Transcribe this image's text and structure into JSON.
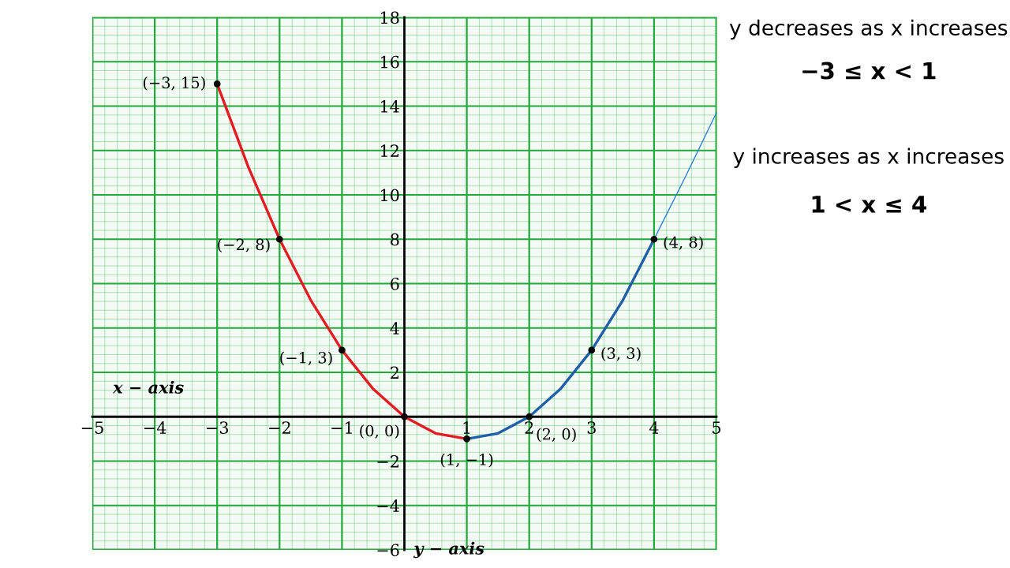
{
  "chart_data": {
    "type": "line",
    "xlabel": "x − axis",
    "ylabel": "y − axis",
    "xlim": [
      -5,
      5
    ],
    "ylim": [
      -6,
      18
    ],
    "xticks": [
      -5,
      {
        "value": -4.8,
        "label": null
      },
      {
        "value": -4.6,
        "label": null
      },
      {
        "value": -4.4,
        "label": null
      },
      {
        "value": -4.2,
        "label": null
      },
      -4,
      {
        "value": -3.8,
        "label": null
      },
      {
        "value": -3.6,
        "label": null
      },
      {
        "value": -3.4,
        "label": null
      },
      {
        "value": -3.2,
        "label": null
      },
      -3,
      {
        "value": -2.8,
        "label": null
      },
      {
        "value": -2.6,
        "label": null
      },
      {
        "value": -2.4,
        "label": null
      },
      {
        "value": -2.2,
        "label": null
      },
      -2,
      {
        "value": -1.8,
        "label": null
      },
      {
        "value": -1.6,
        "label": null
      },
      {
        "value": -1.4,
        "label": null
      },
      {
        "value": -1.2,
        "label": null
      },
      -1,
      {
        "value": -0.8,
        "label": null
      },
      {
        "value": -0.6,
        "label": null
      },
      {
        "value": -0.4,
        "label": null
      },
      {
        "value": -0.2,
        "label": null
      },
      {
        "value": 0,
        "label": null
      },
      {
        "value": 0.2,
        "label": null
      },
      {
        "value": 0.4,
        "label": null
      },
      {
        "value": 0.6,
        "label": null
      },
      {
        "value": 0.8,
        "label": null
      },
      1,
      {
        "value": 1.2,
        "label": null
      },
      {
        "value": 1.4,
        "label": null
      },
      {
        "value": 1.6,
        "label": null
      },
      {
        "value": 1.8,
        "label": null
      },
      2,
      {
        "value": 2.2,
        "label": null
      },
      {
        "value": 2.4,
        "label": null
      },
      {
        "value": 2.6,
        "label": null
      },
      {
        "value": 2.8,
        "label": null
      },
      3,
      {
        "value": 3.2,
        "label": null
      },
      {
        "value": 3.4,
        "label": null
      },
      {
        "value": 3.6,
        "label": null
      },
      {
        "value": 3.8,
        "label": null
      },
      4,
      {
        "value": 4.2,
        "label": null
      },
      {
        "value": 4.4,
        "label": null
      },
      {
        "value": 4.6,
        "label": null
      },
      {
        "value": 4.8,
        "label": null
      },
      5
    ],
    "yticks": [
      -6,
      {
        "value": -5.6,
        "label": null
      },
      {
        "value": -5.2,
        "label": null
      },
      {
        "value": -4.8,
        "label": null
      },
      {
        "value": -4.4,
        "label": null
      },
      -4,
      {
        "value": -3.6,
        "label": null
      },
      {
        "value": -3.2,
        "label": null
      },
      {
        "value": -2.8,
        "label": null
      },
      {
        "value": -2.4,
        "label": null
      },
      -2,
      {
        "value": -1.6,
        "label": null
      },
      {
        "value": -1.2,
        "label": null
      },
      {
        "value": -0.8,
        "label": null
      },
      {
        "value": -0.4,
        "label": null
      },
      {
        "value": 0,
        "label": null
      },
      {
        "value": 0.4,
        "label": null
      },
      {
        "value": 0.8,
        "label": null
      },
      {
        "value": 1.2,
        "label": null
      },
      {
        "value": 1.6,
        "label": null
      },
      2,
      {
        "value": 2.4,
        "label": null
      },
      {
        "value": 2.8,
        "label": null
      },
      {
        "value": 3.2,
        "label": null
      },
      {
        "value": 3.6,
        "label": null
      },
      4,
      {
        "value": 4.4,
        "label": null
      },
      {
        "value": 4.8,
        "label": null
      },
      {
        "value": 5.2,
        "label": null
      },
      {
        "value": 5.6,
        "label": null
      },
      6,
      {
        "value": 6.4,
        "label": null
      },
      {
        "value": 6.8,
        "label": null
      },
      {
        "value": 7.2,
        "label": null
      },
      {
        "value": 7.6,
        "label": null
      },
      8,
      {
        "value": 8.4,
        "label": null
      },
      {
        "value": 8.8,
        "label": null
      },
      {
        "value": 9.2,
        "label": null
      },
      {
        "value": 9.6,
        "label": null
      },
      10,
      {
        "value": 10.4,
        "label": null
      },
      {
        "value": 10.8,
        "label": null
      },
      {
        "value": 11.2,
        "label": null
      },
      {
        "value": 11.6,
        "label": null
      },
      12,
      {
        "value": 12.4,
        "label": null
      },
      {
        "value": 12.8,
        "label": null
      },
      {
        "value": 13.2,
        "label": null
      },
      {
        "value": 13.6,
        "label": null
      },
      14,
      {
        "value": 14.4,
        "label": null
      },
      {
        "value": 14.8,
        "label": null
      },
      {
        "value": 15.2,
        "label": null
      },
      {
        "value": 15.6,
        "label": null
      },
      16,
      {
        "value": 16.4,
        "label": null
      },
      {
        "value": 16.8,
        "label": null
      },
      {
        "value": 17.2,
        "label": null
      },
      {
        "value": 17.6,
        "label": null
      },
      18
    ],
    "grid": true,
    "line_style": "solid",
    "series": [
      {
        "color": "#e31b23",
        "x": [
          -3,
          -2.5,
          -2,
          -1.5,
          -1,
          -0.5,
          0,
          0.5,
          1
        ],
        "values": [
          15,
          11.25,
          8,
          5.25,
          3,
          1.25,
          0,
          -0.75,
          -1
        ],
        "marker": "none"
      },
      {
        "color": "#1f5fa8",
        "x": [
          1,
          1.5,
          2,
          2.5,
          3,
          3.5,
          4
        ],
        "values": [
          -1,
          -0.75,
          0,
          1.25,
          3,
          5.25,
          8
        ],
        "marker": "none"
      },
      {
        "color": "#2a7fd4",
        "x": [
          4,
          4.5,
          5
        ],
        "values": [
          8,
          10.8,
          13.7
        ],
        "marker": "none"
      },
      {
        "type": "scatter",
        "color": "#000000",
        "x": [
          -3,
          -2,
          -1,
          0,
          1,
          2,
          3,
          4
        ],
        "values": [
          15,
          8,
          3,
          0,
          -1,
          0,
          3,
          8
        ],
        "marker": "circle"
      }
    ],
    "annotations": [
      {
        "text": "(−3, 15)",
        "x": -3,
        "y": 15
      },
      {
        "text": "(−2, 8)",
        "x": -2,
        "y": 8
      },
      {
        "text": "(−1, 3)",
        "x": -1,
        "y": 3
      },
      {
        "text": "(0, 0)",
        "x": 0,
        "y": 0
      },
      {
        "text": "(1, −1)",
        "x": 1,
        "y": -1
      },
      {
        "text": "(2, 0)",
        "x": 2,
        "y": 0
      },
      {
        "text": "(3, 3)",
        "x": 3,
        "y": 3
      },
      {
        "text": "(4, 8)",
        "x": 4,
        "y": 8
      },
      "y decreases as x increases",
      "−3 ≤ x < 1",
      "y increases as x increases",
      "1 < x ≤ 4"
    ]
  }
}
